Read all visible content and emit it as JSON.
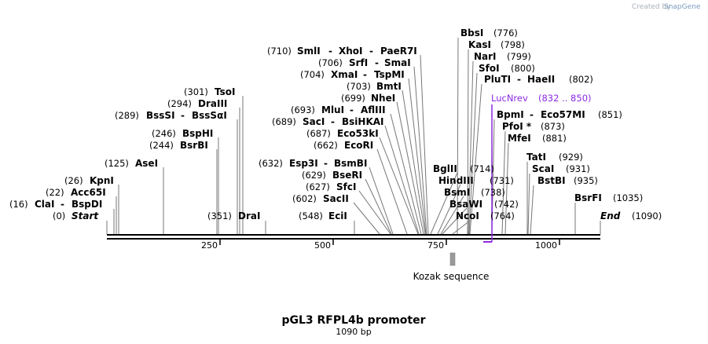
{
  "brand": {
    "created_by": "Created by",
    "app": "SnapGene"
  },
  "map": {
    "title": "pGL3 RFPL4b promoter",
    "length": "1090 bp",
    "ticks": [
      "250",
      "500",
      "750",
      "1000"
    ],
    "start": {
      "pos": "(0)",
      "label": "Start"
    },
    "end": {
      "pos": "(1090)",
      "label": "End"
    }
  },
  "sites": [
    {
      "pos": "(16)",
      "names": [
        "ClaI",
        "BspDI"
      ]
    },
    {
      "pos": "(22)",
      "names": [
        "Acc65I"
      ]
    },
    {
      "pos": "(26)",
      "names": [
        "KpnI"
      ]
    },
    {
      "pos": "(125)",
      "names": [
        "AseI"
      ]
    },
    {
      "pos": "(244)",
      "names": [
        "BsrBI"
      ]
    },
    {
      "pos": "(246)",
      "names": [
        "BspHI"
      ]
    },
    {
      "pos": "(289)",
      "names": [
        "BssSI",
        "BssSαI"
      ]
    },
    {
      "pos": "(294)",
      "names": [
        "DraIII"
      ]
    },
    {
      "pos": "(301)",
      "names": [
        "TsoI"
      ]
    },
    {
      "pos": "(351)",
      "names": [
        "DraI"
      ]
    },
    {
      "pos": "(548)",
      "names": [
        "EciI"
      ]
    },
    {
      "pos": "(602)",
      "names": [
        "SacII"
      ]
    },
    {
      "pos": "(627)",
      "names": [
        "SfcI"
      ]
    },
    {
      "pos": "(629)",
      "names": [
        "BseRI"
      ]
    },
    {
      "pos": "(632)",
      "names": [
        "Esp3I",
        "BsmBI"
      ]
    },
    {
      "pos": "(662)",
      "names": [
        "EcoRI"
      ]
    },
    {
      "pos": "(687)",
      "names": [
        "Eco53kI"
      ]
    },
    {
      "pos": "(689)",
      "names": [
        "SacI",
        "BsiHKAI"
      ]
    },
    {
      "pos": "(693)",
      "names": [
        "MluI",
        "AflIII"
      ]
    },
    {
      "pos": "(699)",
      "names": [
        "NheI"
      ]
    },
    {
      "pos": "(703)",
      "names": [
        "BmtI"
      ]
    },
    {
      "pos": "(704)",
      "names": [
        "XmaI",
        "TspMI"
      ]
    },
    {
      "pos": "(706)",
      "names": [
        "SrfI",
        "SmaI"
      ]
    },
    {
      "pos": "(710)",
      "names": [
        "SmlI",
        "XhoI",
        "PaeR7I"
      ]
    },
    {
      "pos": "(714)",
      "names": [
        "BglII"
      ]
    },
    {
      "pos": "(731)",
      "names": [
        "HindIII"
      ]
    },
    {
      "pos": "(738)",
      "names": [
        "BsmI"
      ]
    },
    {
      "pos": "(742)",
      "names": [
        "BsaWI"
      ]
    },
    {
      "pos": "(764)",
      "names": [
        "NcoI"
      ]
    },
    {
      "pos": "(776)",
      "names": [
        "BbsI"
      ]
    },
    {
      "pos": "(798)",
      "names": [
        "KasI"
      ]
    },
    {
      "pos": "(799)",
      "names": [
        "NarI"
      ]
    },
    {
      "pos": "(800)",
      "names": [
        "SfoI"
      ]
    },
    {
      "pos": "(802)",
      "names": [
        "PluTI",
        "HaeII"
      ]
    },
    {
      "pos": "(851)",
      "names": [
        "BpmI",
        "Eco57MI"
      ]
    },
    {
      "pos": "(873)",
      "names": [
        "PfoI *"
      ]
    },
    {
      "pos": "(881)",
      "names": [
        "MfeI"
      ]
    },
    {
      "pos": "(929)",
      "names": [
        "TatI"
      ]
    },
    {
      "pos": "(931)",
      "names": [
        "ScaI"
      ]
    },
    {
      "pos": "(935)",
      "names": [
        "BstBI"
      ]
    },
    {
      "pos": "(1035)",
      "names": [
        "BsrFI"
      ]
    }
  ],
  "primer": {
    "name": "LucNrev",
    "range": "(832 .. 850)",
    "color": "#8a2be2"
  },
  "feature": {
    "name": "Kozak sequence",
    "color": "#9a9a9a"
  }
}
